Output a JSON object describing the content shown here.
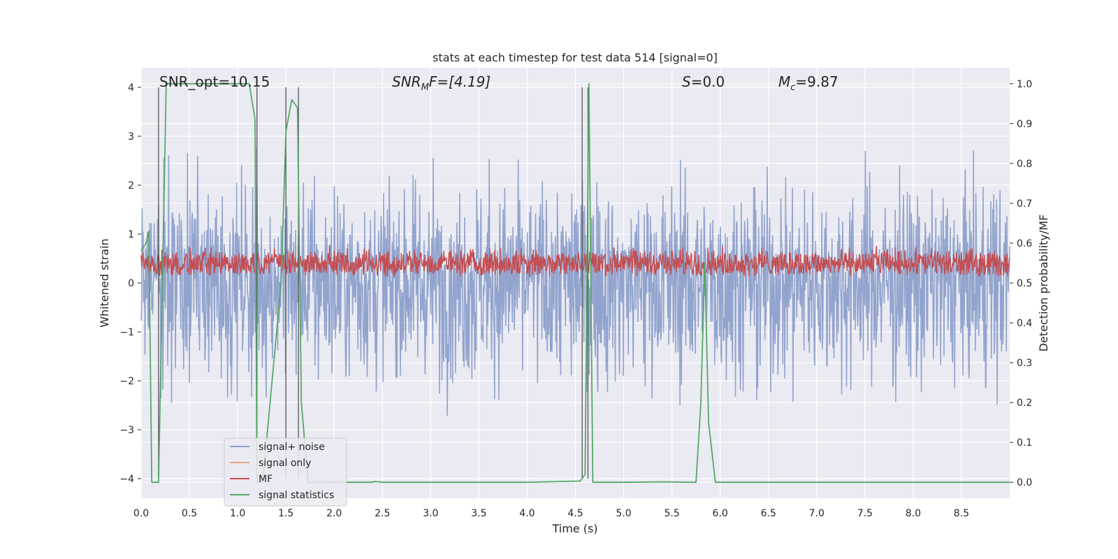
{
  "chart_data": {
    "type": "line",
    "title": "stats at each timestep for test data 514 [signal=0]",
    "xlabel": "Time (s)",
    "ylabel_left": "Whitened strain",
    "ylabel_right": "Detection probability/MF",
    "xlim": [
      0,
      9.0
    ],
    "ylim_left": [
      -4.4,
      4.4
    ],
    "ylim_right": [
      -0.04,
      1.04
    ],
    "xticks": [
      "0.0",
      "0.5",
      "1.0",
      "1.5",
      "2.0",
      "2.5",
      "3.0",
      "3.5",
      "4.0",
      "4.5",
      "5.0",
      "5.5",
      "6.0",
      "6.5",
      "7.0",
      "7.5",
      "8.0",
      "8.5"
    ],
    "yticks_left": [
      "4",
      "3",
      "2",
      "1",
      "0",
      "−1",
      "−2",
      "−3",
      "−4"
    ],
    "yticks_right": [
      "1.0",
      "0.9",
      "0.8",
      "0.7",
      "0.6",
      "0.5",
      "0.4",
      "0.3",
      "0.2",
      "0.1",
      "0.0"
    ],
    "annotations": {
      "snr_opt": "SNR_opt=10.15",
      "snr_mf_prefix": "SNR",
      "snr_mf_sub": "M",
      "snr_mf_suffix": "F=[4.19]",
      "s_prefix": "S",
      "s_suffix": "=0.0",
      "mc_prefix": "M",
      "mc_sub": "c",
      "mc_suffix": "=9.87"
    },
    "grid": true,
    "legend_position": "lower-left",
    "series": [
      {
        "name": "signal+ noise",
        "color": "#8da0cb",
        "axis": "left",
        "description_noise_amplitude": 1.0
      },
      {
        "name": "signal only",
        "color": "#e8a68a",
        "axis": "left",
        "values": []
      },
      {
        "name": "MF",
        "color": "#c44e52",
        "axis": "right",
        "range": [
          0.5,
          0.6
        ]
      },
      {
        "name": "signal statistics",
        "color": "#55a868",
        "axis": "right",
        "x": [
          0.0,
          0.05,
          0.08,
          0.11,
          0.18,
          0.22,
          0.26,
          0.5,
          1.0,
          1.12,
          1.18,
          1.2,
          1.23,
          1.26,
          1.45,
          1.5,
          1.56,
          1.62,
          1.66,
          1.73,
          1.8,
          2.0,
          2.4,
          2.42,
          2.5,
          3.0,
          4.0,
          4.55,
          4.6,
          4.64,
          4.68,
          4.72,
          5.0,
          5.4,
          5.75,
          5.8,
          5.84,
          5.88,
          5.95,
          6.0,
          7.0,
          8.0,
          9.0
        ],
        "y": [
          0.58,
          0.6,
          0.63,
          0.0,
          0.0,
          0.5,
          1.0,
          1.0,
          1.0,
          1.0,
          0.91,
          0.0,
          0.0,
          0.0,
          0.5,
          0.88,
          0.96,
          0.94,
          0.2,
          0.0,
          0.0,
          0.0,
          0.0,
          0.002,
          0.0,
          0.0,
          0.0,
          0.003,
          0.02,
          1.0,
          0.0,
          0.0,
          0.0,
          0.001,
          0.0,
          0.2,
          0.55,
          0.15,
          0.0,
          0.0,
          0.0,
          0.0,
          0.0
        ]
      }
    ],
    "vertical_lines_x": [
      0.18,
      1.2,
      1.5,
      1.63,
      4.57,
      4.63
    ]
  }
}
